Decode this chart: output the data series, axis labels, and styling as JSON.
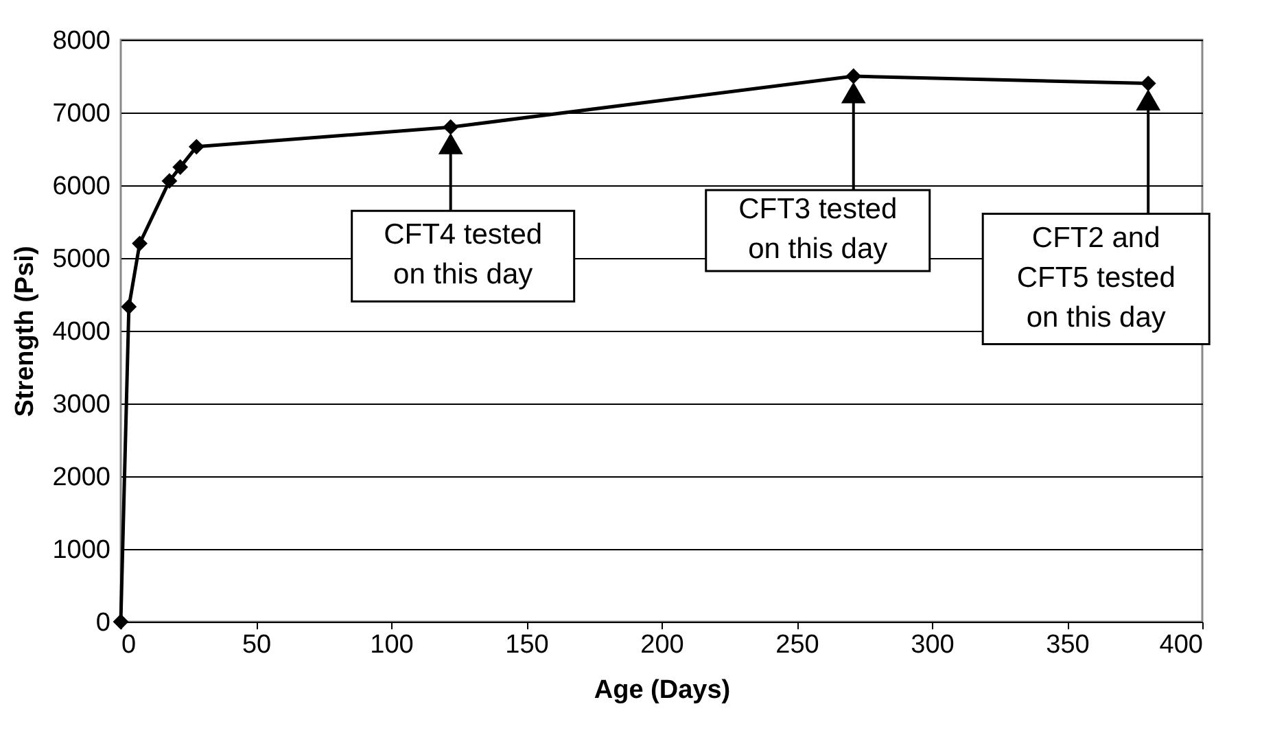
{
  "chart_data": {
    "type": "line",
    "xlabel": "Age (Days)",
    "ylabel": "Strength (Psi)",
    "x": [
      0,
      3,
      7,
      18,
      22,
      28,
      122,
      271,
      380
    ],
    "series": [
      {
        "color": "#000000",
        "values": [
          0,
          4330,
          5200,
          6060,
          6250,
          6530,
          6800,
          7500,
          7400
        ]
      }
    ],
    "xlim": [
      0,
      400
    ],
    "xticks": [
      0,
      50,
      100,
      150,
      200,
      250,
      300,
      350,
      400
    ],
    "ylim": [
      0,
      8000
    ],
    "yticks": [
      0,
      1000,
      2000,
      3000,
      4000,
      5000,
      6000,
      7000,
      8000
    ],
    "grid": "y",
    "marker": "diamond",
    "line_style": "solid",
    "annotations": [
      "CFT4 tested\non this day",
      "CFT3 tested\non this day",
      "CFT2 and\nCFT5 tested\non this day"
    ]
  }
}
